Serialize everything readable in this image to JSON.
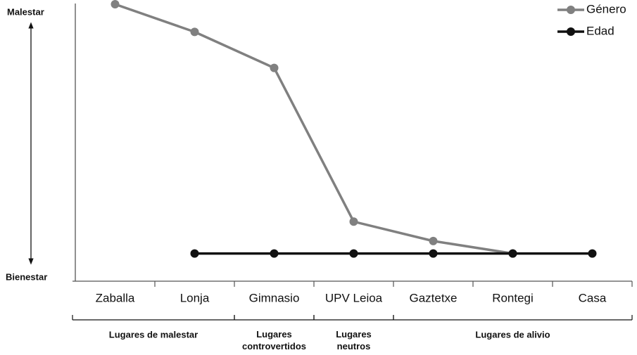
{
  "chart_data": {
    "type": "line",
    "y_top_label": "Malestar",
    "y_bottom_label": "Bienestar",
    "categories": [
      "Zaballa",
      "Lonja",
      "Gimnasio",
      "UPV Leioa",
      "Gaztetxe",
      "Rontegi",
      "Casa"
    ],
    "series": [
      {
        "name": "Género",
        "color": "#808080",
        "values": [
          100,
          90,
          77,
          21.5,
          14.5,
          10,
          null
        ]
      },
      {
        "name": "Edad",
        "color": "#111111",
        "values": [
          null,
          10,
          10,
          10,
          10,
          10,
          10
        ]
      }
    ],
    "ylim": [
      0,
      100
    ],
    "legend": "top-right",
    "groups": [
      {
        "label": "Lugares de  malestar",
        "categories": [
          "Zaballa",
          "Lonja"
        ]
      },
      {
        "label": "Lugares\ncontrovertidos",
        "categories": [
          "Gimnasio"
        ]
      },
      {
        "label": "Lugares\nneutros",
        "categories": [
          "UPV Leioa"
        ]
      },
      {
        "label": "Lugares de alivio",
        "categories": [
          "Gaztetxe",
          "Rontegi",
          "Casa"
        ]
      }
    ]
  }
}
